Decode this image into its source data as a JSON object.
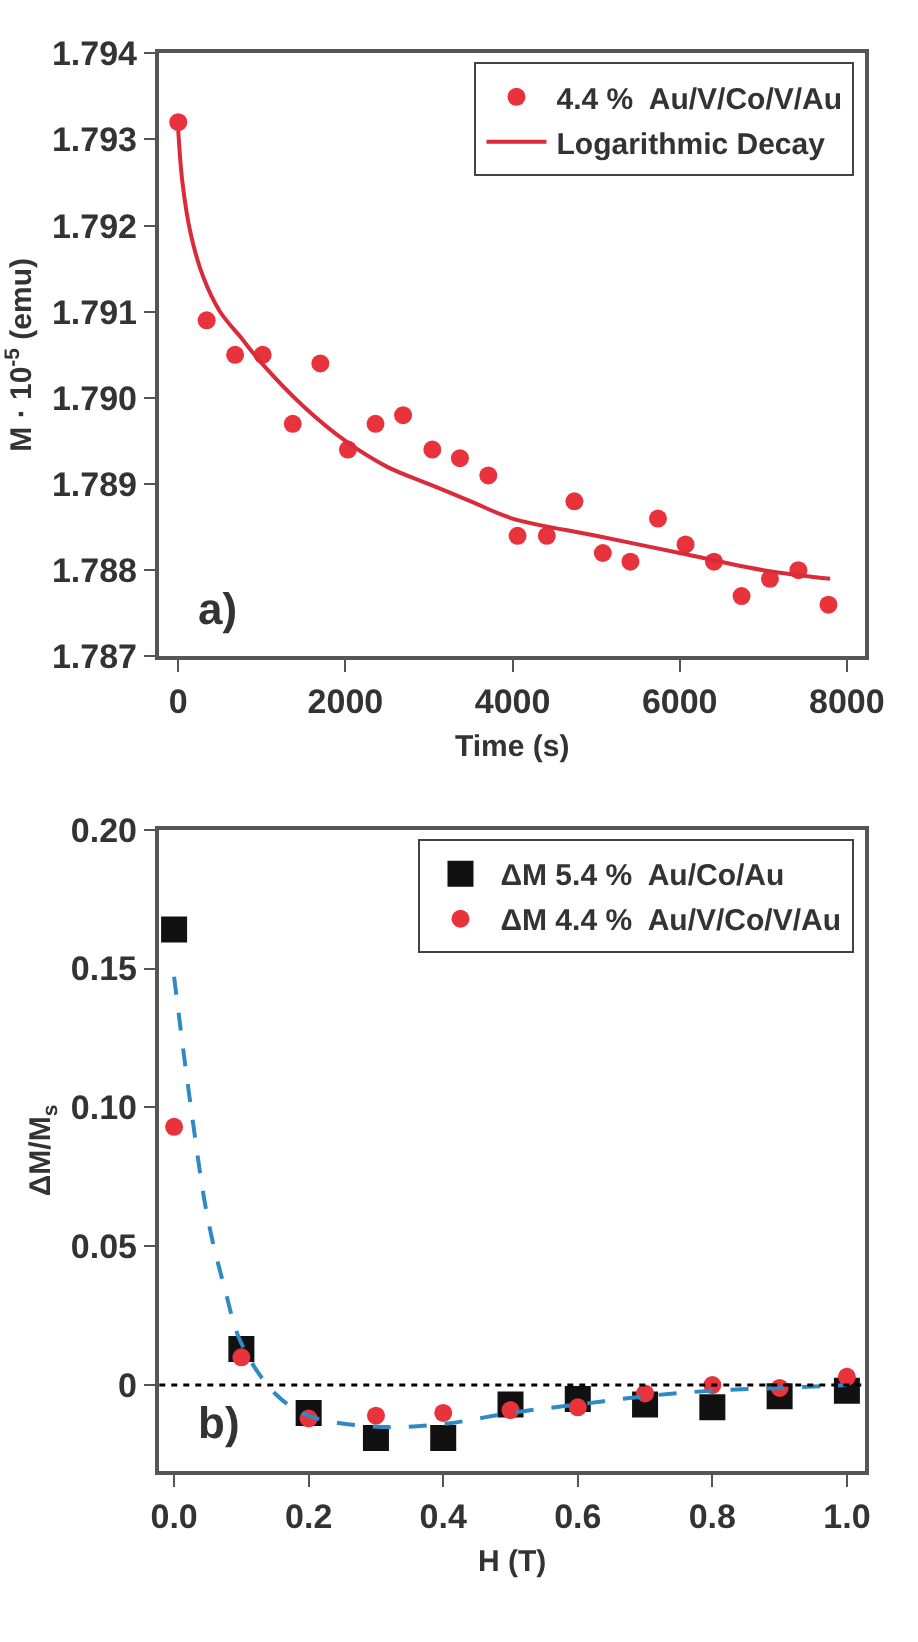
{
  "chart_data": [
    {
      "type": "scatter",
      "xlabel": "Time (s)",
      "ylabel": "M · 10$^{-5}$ (emu)",
      "xlim": [
        -227,
        8218
      ],
      "ylim": [
        1.787,
        1.794
      ],
      "xticks": [
        0,
        2000,
        4000,
        6000,
        8000
      ],
      "yticks": [
        1.787,
        1.788,
        1.789,
        {
          "value": 1.79,
          "label": "1.790"
        },
        1.791,
        1.792,
        1.793,
        1.794
      ],
      "legend": "top right",
      "annotations": [
        "a)"
      ],
      "series": [
        {
          "name": "4.4 %  Au/V/Co/V/Au",
          "marker": "circle",
          "color": "#e8323c",
          "x": [
            0,
            340,
            680,
            1010,
            1370,
            1700,
            2030,
            2360,
            2690,
            3040,
            3370,
            3710,
            4060,
            4410,
            4740,
            5080,
            5410,
            5740,
            6070,
            6410,
            6740,
            7080,
            7420,
            7780
          ],
          "values": [
            1.7932,
            1.7909,
            1.7905,
            1.7905,
            1.7897,
            1.7904,
            1.7894,
            1.7897,
            1.7898,
            1.7894,
            1.7893,
            1.7891,
            1.7884,
            1.7884,
            1.7888,
            1.7882,
            1.7881,
            1.7886,
            1.7883,
            1.7881,
            1.7877,
            1.7879,
            1.788,
            1.7876
          ]
        },
        {
          "name": "Logarithmic Decay",
          "type": "line",
          "marker": "none",
          "line_style": "solid",
          "color": "#d92b3a",
          "x": [
            0,
            50,
            150,
            300,
            500,
            750,
            1000,
            1500,
            2000,
            2500,
            3000,
            3500,
            4000,
            5000,
            6000,
            7000,
            7800
          ],
          "values": [
            1.7931,
            1.7925,
            1.7919,
            1.7914,
            1.791,
            1.7907,
            1.7904,
            1.7899,
            1.7895,
            1.7892,
            1.789,
            1.7888,
            1.7886,
            1.7884,
            1.7882,
            1.788,
            1.7879
          ]
        }
      ]
    },
    {
      "type": "scatter",
      "xlabel": "H (T)",
      "ylabel": "ΔM/M$_{s}$",
      "xlim": [
        -0.022,
        1.027
      ],
      "ylim": [
        -0.031,
        0.2
      ],
      "xticks": [
        {
          "value": 0,
          "label": "0.0"
        },
        {
          "value": 0.2,
          "label": "0.2"
        },
        {
          "value": 0.4,
          "label": "0.4"
        },
        {
          "value": 0.6,
          "label": "0.6"
        },
        {
          "value": 0.8,
          "label": "0.8"
        },
        {
          "value": 1,
          "label": "1.0"
        }
      ],
      "yticks": [
        0,
        {
          "value": 0.05,
          "label": "0.05"
        },
        {
          "value": 0.1,
          "label": "0.10"
        },
        {
          "value": 0.15,
          "label": "0.15"
        },
        {
          "value": 0.2,
          "label": "0.20"
        }
      ],
      "legend": "top right",
      "annotations": [
        "b)"
      ],
      "ref_lines": [
        {
          "axis": "y",
          "value": 0,
          "label": null,
          "color": "#000000",
          "line_style": "dotted"
        }
      ],
      "series": [
        {
          "name": "ΔM 5.4 %  Au/Co/Au",
          "marker": "square",
          "color": "#111111",
          "x": [
            0,
            0.1,
            0.2,
            0.3,
            0.4,
            0.5,
            0.6,
            0.7,
            0.8,
            0.9,
            1.0
          ],
          "values": [
            0.164,
            0.013,
            -0.01,
            -0.019,
            -0.019,
            -0.007,
            -0.005,
            -0.007,
            -0.008,
            -0.004,
            -0.002
          ]
        },
        {
          "name": "ΔM 4.4 %  Au/V/Co/V/Au",
          "marker": "circle",
          "color": "#e8323c",
          "x": [
            0,
            0.1,
            0.2,
            0.3,
            0.4,
            0.5,
            0.6,
            0.7,
            0.8,
            0.9,
            1.0
          ],
          "values": [
            0.093,
            0.01,
            -0.012,
            -0.011,
            -0.01,
            -0.009,
            -0.008,
            -0.003,
            0.0,
            -0.001,
            0.003
          ]
        },
        {
          "type": "line",
          "marker": "none",
          "line_style": "dashed",
          "color": "#2f8ac4",
          "x": [
            0,
            0.025,
            0.05,
            0.075,
            0.1,
            0.15,
            0.2,
            0.3,
            0.4,
            0.5,
            0.6,
            0.7,
            0.8,
            0.9,
            1.0
          ],
          "values": [
            0.147,
            0.1,
            0.06,
            0.035,
            0.015,
            -0.003,
            -0.011,
            -0.015,
            -0.014,
            -0.01,
            -0.007,
            -0.004,
            -0.002,
            -0.001,
            0.0
          ]
        }
      ]
    }
  ]
}
